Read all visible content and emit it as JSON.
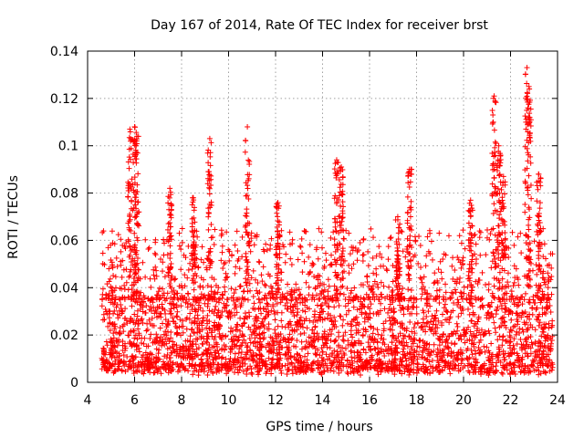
{
  "chart_data": {
    "type": "scatter",
    "title": "Day 167 of 2014, Rate Of TEC Index for receiver brst",
    "xlabel": "GPS time / hours",
    "ylabel": "ROTI / TECUs",
    "xlim": [
      4,
      24
    ],
    "ylim": [
      0,
      0.14
    ],
    "x_ticks": [
      "4",
      "6",
      "8",
      "10",
      "12",
      "14",
      "16",
      "18",
      "20",
      "22",
      "24"
    ],
    "y_ticks": [
      "0",
      "0.02",
      "0.04",
      "0.06",
      "0.08",
      "0.1",
      "0.12",
      "0.14"
    ],
    "x_tick_values": [
      4,
      6,
      8,
      10,
      12,
      14,
      16,
      18,
      20,
      22,
      24
    ],
    "y_tick_values": [
      0,
      0.02,
      0.04,
      0.06,
      0.08,
      0.1,
      0.12,
      0.14
    ],
    "grid": true,
    "marker": "plus",
    "color": "#ff0000",
    "series": [
      {
        "name": "ROTI",
        "x_range": [
          4.6,
          23.8
        ],
        "background_band": [
          0.005,
          0.035
        ],
        "peaks": [
          {
            "x": 5.8,
            "y": 0.107
          },
          {
            "x": 6.0,
            "y": 0.108
          },
          {
            "x": 6.1,
            "y": 0.104
          },
          {
            "x": 7.5,
            "y": 0.082
          },
          {
            "x": 8.5,
            "y": 0.078
          },
          {
            "x": 9.2,
            "y": 0.103
          },
          {
            "x": 10.8,
            "y": 0.108
          },
          {
            "x": 12.1,
            "y": 0.076
          },
          {
            "x": 14.6,
            "y": 0.094
          },
          {
            "x": 14.8,
            "y": 0.091
          },
          {
            "x": 17.2,
            "y": 0.07
          },
          {
            "x": 17.7,
            "y": 0.09
          },
          {
            "x": 20.3,
            "y": 0.077
          },
          {
            "x": 21.3,
            "y": 0.121
          },
          {
            "x": 21.5,
            "y": 0.1
          },
          {
            "x": 21.7,
            "y": 0.087
          },
          {
            "x": 22.7,
            "y": 0.133
          },
          {
            "x": 22.8,
            "y": 0.124
          },
          {
            "x": 23.2,
            "y": 0.088
          }
        ]
      }
    ]
  }
}
